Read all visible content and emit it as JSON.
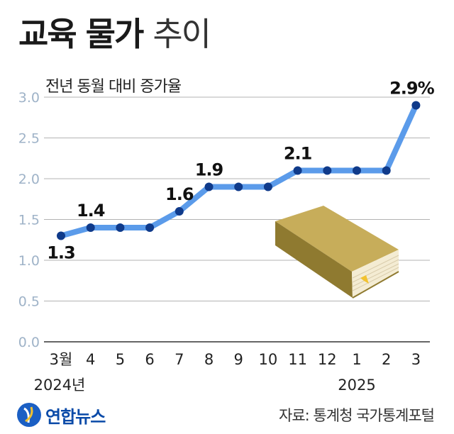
{
  "header": {
    "title_bold": "교육 물가",
    "title_light": "추이",
    "subtitle": "전년 동월 대비 증가율"
  },
  "footer": {
    "logo_text": "연합뉴스",
    "source": "자료: 통계청 국가통계포털"
  },
  "colors": {
    "line": "#5b9bea",
    "marker": "#0f3a8a",
    "grid": "#b3b3b3",
    "axis_label": "#9fb3c8",
    "book": "#b8a050"
  },
  "icons": [
    "book-illustration",
    "yonhap-logo-icon"
  ],
  "chart_data": {
    "type": "line",
    "categories": [
      "3월",
      "4",
      "5",
      "6",
      "7",
      "8",
      "9",
      "10",
      "11",
      "12",
      "1",
      "2",
      "3"
    ],
    "year_labels": [
      {
        "text": "2024년",
        "category": "3월"
      },
      {
        "text": "2025",
        "category": "1"
      }
    ],
    "series": [
      {
        "values": [
          1.3,
          1.4,
          1.4,
          1.4,
          1.6,
          1.9,
          1.9,
          1.9,
          2.1,
          2.1,
          2.1,
          2.1,
          2.9
        ]
      }
    ],
    "data_labels": [
      {
        "index": 0,
        "text": "1.3",
        "placement": "below"
      },
      {
        "index": 1,
        "text": "1.4",
        "placement": "above"
      },
      {
        "index": 4,
        "text": "1.6",
        "placement": "above"
      },
      {
        "index": 5,
        "text": "1.9",
        "placement": "above"
      },
      {
        "index": 8,
        "text": "2.1",
        "placement": "above"
      },
      {
        "index": 12,
        "text": "2.9%",
        "placement": "above"
      }
    ],
    "yticks": [
      "0.0",
      "0.5",
      "1.0",
      "1.5",
      "2.0",
      "2.5",
      "3.0"
    ],
    "ylim": [
      0,
      3.0
    ],
    "grid": "horizontal",
    "legend": "none"
  }
}
